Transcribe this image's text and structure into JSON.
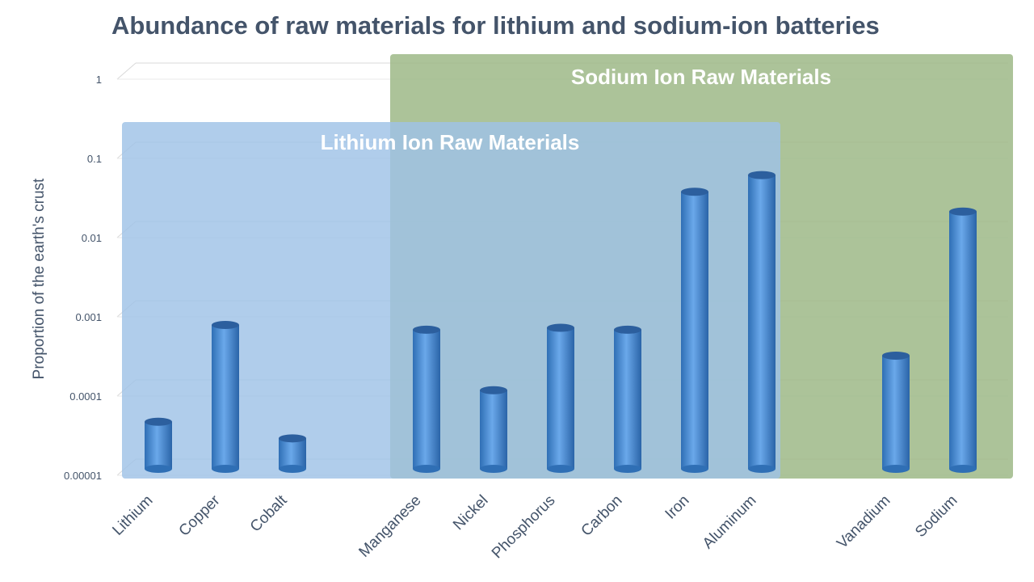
{
  "chart_data": {
    "type": "bar",
    "title": "Abundance of raw materials for lithium and sodium-ion batteries",
    "ylabel": "Proportion of the earth's crust",
    "xlabel": "",
    "yscale": "log",
    "ylim": [
      1e-05,
      1
    ],
    "yticks": [
      "0.00001",
      "0.0001",
      "0.001",
      "0.01",
      "0.1",
      "1"
    ],
    "grid": true,
    "categories": [
      "Lithium",
      "Copper",
      "Cobalt",
      "Manganese",
      "Nickel",
      "Phosphorus",
      "Carbon",
      "Iron",
      "Aluminum",
      "Vanadium",
      "Sodium"
    ],
    "values": [
      6e-05,
      0.001,
      3.7e-05,
      0.00087,
      0.00015,
      0.00092,
      0.00087,
      0.048,
      0.078,
      0.00041,
      0.027
    ],
    "groups": [
      {
        "label": "Lithium Ion Raw Materials",
        "color": "#9fc2e7",
        "members": [
          "Lithium",
          "Copper",
          "Cobalt",
          "Manganese",
          "Nickel",
          "Phosphorus",
          "Carbon",
          "Iron",
          "Aluminum"
        ]
      },
      {
        "label": "Sodium Ion Raw Materials",
        "color": "#9db987",
        "members": [
          "Manganese",
          "Nickel",
          "Phosphorus",
          "Carbon",
          "Iron",
          "Aluminum",
          "Vanadium",
          "Sodium"
        ]
      }
    ],
    "bar_color": "#4a8fd6"
  }
}
